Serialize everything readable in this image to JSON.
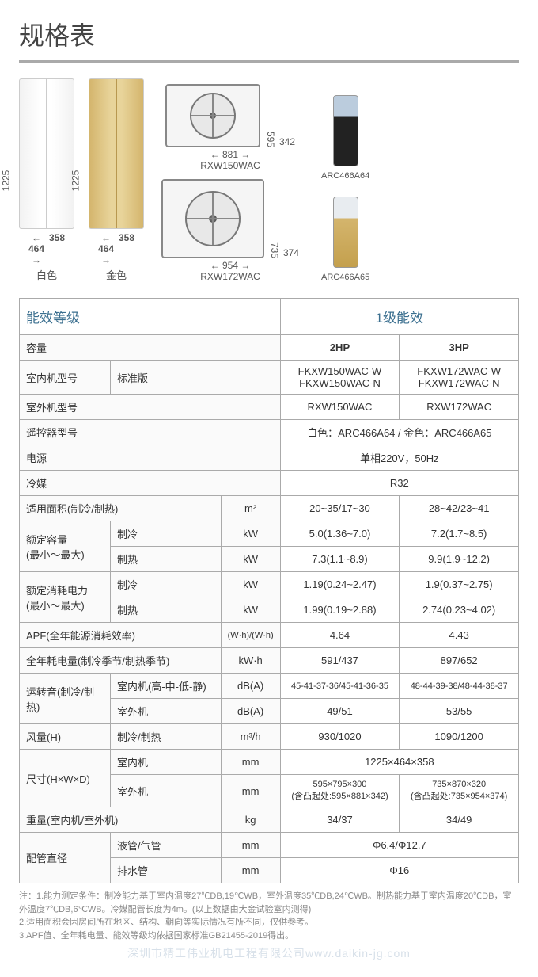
{
  "title": "规格表",
  "indoor": {
    "height": "1225",
    "width": "464",
    "depth": "358",
    "white_label": "白色",
    "gold_label": "金色"
  },
  "outdoor": {
    "unit1": {
      "w": "881",
      "h": "595",
      "d": "342",
      "model": "RXW150WAC"
    },
    "unit2": {
      "w": "954",
      "h": "735",
      "d": "374",
      "model": "RXW172WAC"
    }
  },
  "remotes": {
    "r1": "ARC466A64",
    "r2": "ARC466A65"
  },
  "header": {
    "eff_label": "能效等级",
    "eff_value": "1级能效",
    "cap_label": "容量",
    "cap_2hp": "2HP",
    "cap_3hp": "3HP"
  },
  "rows": {
    "indoor_model_lbl": "室内机型号",
    "indoor_model_sub": "标准版",
    "indoor_model_2hp": "FKXW150WAC-W\nFKXW150WAC-N",
    "indoor_model_3hp": "FKXW172WAC-W\nFKXW172WAC-N",
    "outdoor_model_lbl": "室外机型号",
    "outdoor_model_2hp": "RXW150WAC",
    "outdoor_model_3hp": "RXW172WAC",
    "remote_lbl": "遥控器型号",
    "remote_val": "白色：ARC466A64 / 金色：ARC466A65",
    "power_lbl": "电源",
    "power_val": "单相220V，50Hz",
    "refrig_lbl": "冷媒",
    "refrig_val": "R32",
    "area_lbl": "适用面积(制冷/制热)",
    "area_unit": "m²",
    "area_2hp": "20~35/17~30",
    "area_3hp": "28~42/23~41",
    "rated_cap_lbl": "额定容量\n(最小～最大)",
    "cool": "制冷",
    "heat": "制热",
    "rated_cap_cool_2hp": "5.0(1.36~7.0)",
    "rated_cap_cool_3hp": "7.2(1.7~8.5)",
    "rated_cap_heat_2hp": "7.3(1.1~8.9)",
    "rated_cap_heat_3hp": "9.9(1.9~12.2)",
    "rated_pow_lbl": "额定消耗电力\n(最小～最大)",
    "rated_pow_cool_2hp": "1.19(0.24~2.47)",
    "rated_pow_cool_3hp": "1.9(0.37~2.75)",
    "rated_pow_heat_2hp": "1.99(0.19~2.88)",
    "rated_pow_heat_3hp": "2.74(0.23~4.02)",
    "apf_lbl": "APF(全年能源消耗效率)",
    "apf_unit": "(W·h)/(W·h)",
    "apf_2hp": "4.64",
    "apf_3hp": "4.43",
    "annual_lbl": "全年耗电量(制冷季节/制热季节)",
    "annual_unit": "kW·h",
    "annual_2hp": "591/437",
    "annual_3hp": "897/652",
    "noise_lbl": "运转音(制冷/制热)",
    "noise_indoor_sub": "室内机(高-中-低-静)",
    "noise_outdoor_sub": "室外机",
    "noise_unit": "dB(A)",
    "noise_in_2hp": "45-41-37-36/45-41-36-35",
    "noise_in_3hp": "48-44-39-38/48-44-38-37",
    "noise_out_2hp": "49/51",
    "noise_out_3hp": "53/55",
    "airflow_lbl": "风量(H)",
    "airflow_sub": "制冷/制热",
    "airflow_unit": "m³/h",
    "airflow_2hp": "930/1020",
    "airflow_3hp": "1090/1200",
    "dim_lbl": "尺寸(H×W×D)",
    "dim_indoor_sub": "室内机",
    "dim_outdoor_sub": "室外机",
    "dim_unit": "mm",
    "dim_indoor_val": "1225×464×358",
    "dim_out_2hp": "595×795×300\n(含凸起处:595×881×342)",
    "dim_out_3hp": "735×870×320\n(含凸起处:735×954×374)",
    "weight_lbl": "重量(室内机/室外机)",
    "weight_unit": "kg",
    "weight_2hp": "34/37",
    "weight_3hp": "34/49",
    "pipe_lbl": "配管直径",
    "pipe_liq_sub": "液管/气管",
    "pipe_drain_sub": "排水管",
    "pipe_unit": "mm",
    "pipe_liq_val": "Φ6.4/Φ12.7",
    "pipe_drain_val": "Φ16",
    "kw": "kW"
  },
  "notes": {
    "prefix": "注：",
    "n1": "1.能力测定条件：制冷能力基于室内温度27℃DB,19℃WB，室外温度35℃DB,24℃WB。制热能力基于室内温度20℃DB，室外温度7℃DB,6℃WB。冷媒配管长度为4m。(以上数据由大金试验室内测得)",
    "n2": "2.适用面积会因房间所在地区、结构、朝向等实际情况有所不同，仅供参考。",
    "n3": "3.APF值、全年耗电量、能效等级均依据国家标准GB21455-2019得出。"
  },
  "watermark": "深圳市精工伟业机电工程有限公司www.daikin-jg.com"
}
